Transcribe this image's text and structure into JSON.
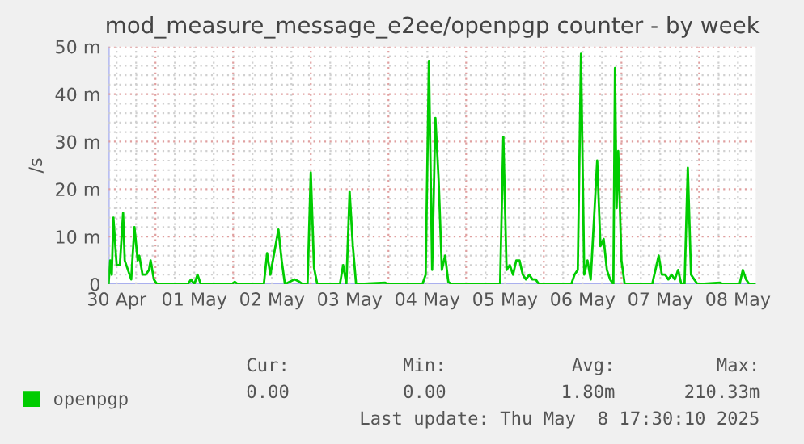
{
  "chart_data": {
    "type": "line",
    "title": "mod_measure_message_e2ee/openpgp counter - by week",
    "ylabel": "/s",
    "xlim": [
      "2025-04-30T09:30",
      "2025-05-08T17:30"
    ],
    "xticks": [
      {
        "value": "2025-04-30T12:00",
        "label": "30 Apr"
      },
      {
        "value": "2025-05-01T12:00",
        "label": "01 May"
      },
      {
        "value": "2025-05-02T12:00",
        "label": "02 May"
      },
      {
        "value": "2025-05-03T12:00",
        "label": "03 May"
      },
      {
        "value": "2025-05-04T12:00",
        "label": "04 May"
      },
      {
        "value": "2025-05-05T12:00",
        "label": "05 May"
      },
      {
        "value": "2025-05-06T12:00",
        "label": "06 May"
      },
      {
        "value": "2025-05-07T12:00",
        "label": "07 May"
      },
      {
        "value": "2025-05-08T12:00",
        "label": "08 May"
      }
    ],
    "ylim": [
      0,
      50
    ],
    "yticks": [
      0,
      {
        "value": 10,
        "label": "10 m"
      },
      {
        "value": 20,
        "label": "20 m"
      },
      {
        "value": 30,
        "label": "30 m"
      },
      {
        "value": 40,
        "label": "40 m"
      },
      {
        "value": 50,
        "label": "50 m"
      }
    ],
    "grid": true,
    "legend": "bottom left",
    "marker": "none",
    "line_style": "solid",
    "x": [
      "2025-04-30T09:30",
      "2025-04-30T10:00",
      "2025-04-30T10:30",
      "2025-04-30T11:00",
      "2025-04-30T12:00",
      "2025-04-30T13:00",
      "2025-04-30T14:00",
      "2025-04-30T14:30",
      "2025-04-30T15:30",
      "2025-04-30T16:30",
      "2025-04-30T17:30",
      "2025-04-30T18:30",
      "2025-04-30T19:00",
      "2025-04-30T20:00",
      "2025-04-30T21:00",
      "2025-04-30T22:00",
      "2025-04-30T22:30",
      "2025-04-30T23:30",
      "2025-05-01T00:30",
      "2025-05-01T10:00",
      "2025-05-01T11:00",
      "2025-05-01T12:00",
      "2025-05-01T13:00",
      "2025-05-01T14:00",
      "2025-05-01T23:30",
      "2025-05-02T00:30",
      "2025-05-02T01:30",
      "2025-05-02T09:30",
      "2025-05-02T10:30",
      "2025-05-02T11:30",
      "2025-05-02T14:00",
      "2025-05-02T15:00",
      "2025-05-02T16:00",
      "2025-05-02T19:00",
      "2025-05-02T20:30",
      "2025-05-02T21:30",
      "2025-05-02T23:00",
      "2025-05-03T00:00",
      "2025-05-03T01:00",
      "2025-05-03T02:00",
      "2025-05-03T09:00",
      "2025-05-03T10:00",
      "2025-05-03T11:00",
      "2025-05-03T12:00",
      "2025-05-03T13:00",
      "2025-05-03T14:00",
      "2025-05-03T23:00",
      "2025-05-04T00:00",
      "2025-05-04T10:30",
      "2025-05-04T11:30",
      "2025-05-04T12:30",
      "2025-05-04T13:30",
      "2025-05-04T14:30",
      "2025-05-04T15:30",
      "2025-05-04T16:30",
      "2025-05-04T17:30",
      "2025-05-04T18:30",
      "2025-05-04T19:30",
      "2025-05-05T10:30",
      "2025-05-05T11:30",
      "2025-05-05T12:30",
      "2025-05-05T13:30",
      "2025-05-05T14:30",
      "2025-05-05T15:30",
      "2025-05-05T16:30",
      "2025-05-05T17:30",
      "2025-05-05T18:30",
      "2025-05-05T19:30",
      "2025-05-05T20:30",
      "2025-05-05T21:30",
      "2025-05-05T22:30",
      "2025-05-06T08:30",
      "2025-05-06T09:30",
      "2025-05-06T10:30",
      "2025-05-06T11:30",
      "2025-05-06T12:30",
      "2025-05-06T13:30",
      "2025-05-06T14:30",
      "2025-05-06T16:30",
      "2025-05-06T17:30",
      "2025-05-06T18:30",
      "2025-05-06T19:30",
      "2025-05-06T20:30",
      "2025-05-06T21:30",
      "2025-05-06T22:00",
      "2025-05-06T22:30",
      "2025-05-06T23:00",
      "2025-05-07T00:00",
      "2025-05-07T01:00",
      "2025-05-07T09:30",
      "2025-05-07T10:30",
      "2025-05-07T11:30",
      "2025-05-07T12:30",
      "2025-05-07T13:30",
      "2025-05-07T14:30",
      "2025-05-07T15:30",
      "2025-05-07T16:30",
      "2025-05-07T17:30",
      "2025-05-07T18:30",
      "2025-05-07T19:30",
      "2025-05-07T20:30",
      "2025-05-07T21:30",
      "2025-05-07T22:30",
      "2025-05-07T23:30",
      "2025-05-08T06:30",
      "2025-05-08T07:30",
      "2025-05-08T12:30",
      "2025-05-08T13:30",
      "2025-05-08T14:30",
      "2025-05-08T15:30",
      "2025-05-08T17:30"
    ],
    "series": [
      {
        "name": "openpgp",
        "color": "#00cc00",
        "values": [
          0,
          5,
          2,
          14,
          4,
          4,
          15,
          5,
          3,
          1,
          12,
          5,
          6,
          2,
          2,
          3,
          5,
          1,
          0,
          0,
          1,
          0,
          2,
          0,
          0,
          0.5,
          0,
          0,
          6.5,
          2,
          11.5,
          5,
          0,
          1,
          0.5,
          0,
          0,
          23.5,
          3.5,
          0,
          0,
          4,
          0,
          19.5,
          8,
          0,
          0.3,
          0,
          0,
          2,
          47,
          3,
          35,
          22,
          3,
          6,
          0.5,
          0,
          0,
          31,
          3,
          4,
          2,
          5,
          5,
          2,
          1,
          2,
          1,
          1,
          0,
          0,
          2,
          3,
          48.5,
          2,
          5,
          1,
          26,
          8,
          9.5,
          3,
          1,
          0,
          45.5,
          16,
          28,
          5,
          0,
          0,
          3,
          6,
          2,
          2,
          1,
          2,
          1,
          3,
          0,
          0,
          24.5,
          2,
          1,
          0,
          0.3,
          0,
          0,
          3,
          1,
          0,
          0
        ]
      }
    ],
    "annotations": [
      "Cur:",
      "0.00",
      "Min:",
      "0.00",
      "Avg:",
      "1.80m",
      "Max:",
      "210.33m",
      "Last update: Thu May  8 17:30:10 2025"
    ]
  }
}
